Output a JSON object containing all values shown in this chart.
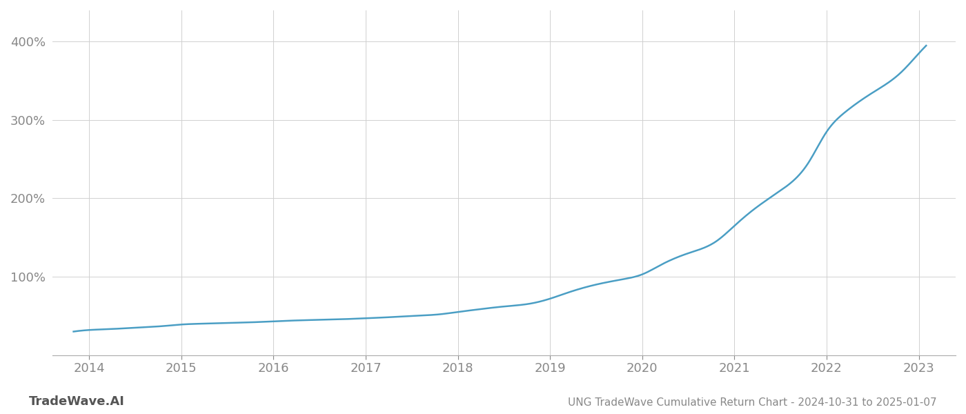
{
  "title": "UNG TradeWave Cumulative Return Chart - 2024-10-31 to 2025-01-07",
  "watermark": "TradeWave.AI",
  "line_color": "#4a9ec4",
  "background_color": "#ffffff",
  "grid_color": "#d0d0d0",
  "x_years": [
    2014,
    2015,
    2016,
    2017,
    2018,
    2019,
    2020,
    2021,
    2022,
    2023
  ],
  "x_values": [
    2013.83,
    2013.9,
    2014.0,
    2014.2,
    2014.5,
    2014.8,
    2015.0,
    2015.2,
    2015.5,
    2015.8,
    2016.0,
    2016.2,
    2016.5,
    2016.8,
    2017.0,
    2017.2,
    2017.5,
    2017.8,
    2018.0,
    2018.2,
    2018.5,
    2018.8,
    2019.0,
    2019.2,
    2019.5,
    2019.8,
    2020.0,
    2020.2,
    2020.5,
    2020.8,
    2021.0,
    2021.2,
    2021.5,
    2021.8,
    2022.0,
    2022.2,
    2022.5,
    2022.8,
    2023.0,
    2023.08
  ],
  "y_values": [
    30,
    31,
    32,
    33,
    35,
    37,
    39,
    40,
    41,
    42,
    43,
    44,
    45,
    46,
    47,
    48,
    50,
    52,
    55,
    58,
    62,
    66,
    72,
    80,
    90,
    97,
    103,
    115,
    130,
    145,
    165,
    185,
    210,
    245,
    285,
    310,
    335,
    360,
    385,
    395
  ],
  "yticks": [
    100,
    200,
    300,
    400
  ],
  "ylim": [
    0,
    440
  ],
  "xlim": [
    2013.6,
    2023.4
  ],
  "title_fontsize": 11,
  "tick_fontsize": 13,
  "watermark_fontsize": 13,
  "line_width": 1.8
}
